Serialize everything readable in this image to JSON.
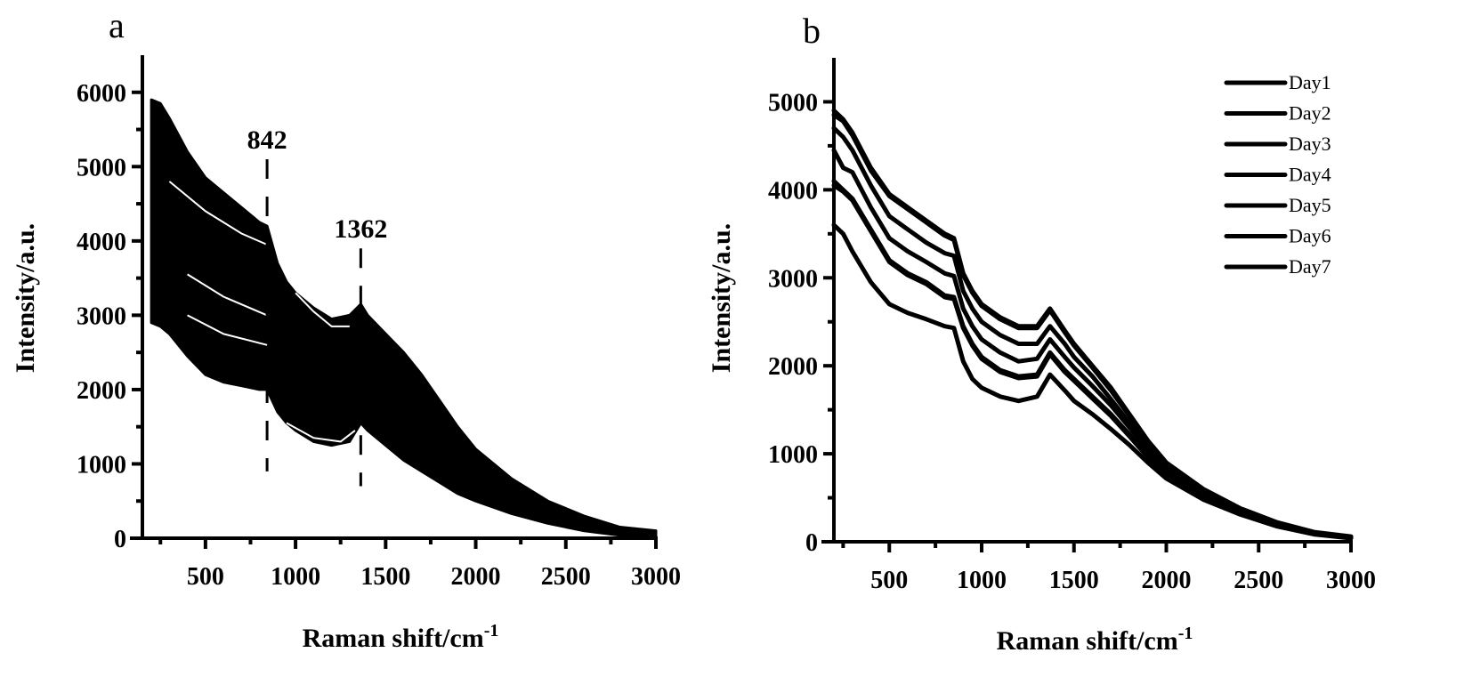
{
  "chart_data": [
    {
      "id": "a",
      "type": "line",
      "panel_label": "a",
      "title": "",
      "xlabel": "Raman shift/cm",
      "xlabel_sup": "-1",
      "ylabel": "Intensity/a.u.",
      "xlim": [
        150,
        3000
      ],
      "ylim": [
        0,
        6500
      ],
      "xticks": [
        500,
        1000,
        1500,
        2000,
        2500,
        3000
      ],
      "xtick_labels": [
        "500",
        "1000",
        "1500",
        "2000",
        "2500",
        "3000"
      ],
      "yticks": [
        0,
        1000,
        2000,
        3000,
        4000,
        5000,
        6000
      ],
      "ytick_labels": [
        "0",
        "1000",
        "2000",
        "3000",
        "4000",
        "5000",
        "6000"
      ],
      "grid": false,
      "legend": null,
      "description": "Dense overlay of many Raman spectra forming a filled black band",
      "band": {
        "x": [
          200,
          250,
          300,
          400,
          500,
          600,
          700,
          800,
          842,
          900,
          950,
          1000,
          1100,
          1200,
          1300,
          1362,
          1400,
          1500,
          1600,
          1700,
          1800,
          1900,
          2000,
          2200,
          2400,
          2600,
          2800,
          3000
        ],
        "upper": [
          5900,
          5850,
          5650,
          5200,
          4850,
          4650,
          4450,
          4250,
          4200,
          3700,
          3450,
          3300,
          3100,
          2950,
          3000,
          3150,
          3000,
          2750,
          2500,
          2200,
          1850,
          1500,
          1200,
          800,
          500,
          300,
          150,
          100
        ],
        "lower": [
          2900,
          2850,
          2750,
          2450,
          2200,
          2100,
          2050,
          2000,
          2000,
          1700,
          1550,
          1450,
          1300,
          1250,
          1300,
          1550,
          1450,
          1250,
          1050,
          900,
          750,
          600,
          500,
          330,
          200,
          100,
          40,
          20
        ]
      },
      "inner_traces": [
        {
          "x": [
            300,
            500,
            700,
            842
          ],
          "y": [
            4800,
            4400,
            4100,
            3950
          ]
        },
        {
          "x": [
            400,
            600,
            842
          ],
          "y": [
            3550,
            3250,
            3000
          ]
        },
        {
          "x": [
            400,
            600,
            842
          ],
          "y": [
            3000,
            2750,
            2600
          ]
        },
        {
          "x": [
            1000,
            1100,
            1200,
            1300
          ],
          "y": [
            3300,
            3050,
            2850,
            2850
          ]
        },
        {
          "x": [
            950,
            1100,
            1250,
            1330
          ],
          "y": [
            1550,
            1350,
            1300,
            1450
          ]
        }
      ],
      "annotations": [
        {
          "text": "842",
          "x": 842,
          "line_from": 900,
          "line_to": 5100,
          "style": "dashed"
        },
        {
          "text": "1362",
          "x": 1362,
          "line_from": 700,
          "line_to": 3900,
          "style": "dashed"
        }
      ]
    },
    {
      "id": "b",
      "type": "line",
      "panel_label": "b",
      "title": "",
      "xlabel": "Raman shift/cm",
      "xlabel_sup": "-1",
      "ylabel": "Intensity/a.u.",
      "xlim": [
        200,
        3000
      ],
      "ylim": [
        0,
        5500
      ],
      "xticks": [
        500,
        1000,
        1500,
        2000,
        2500,
        3000
      ],
      "xtick_labels": [
        "500",
        "1000",
        "1500",
        "2000",
        "2500",
        "3000"
      ],
      "yticks": [
        0,
        1000,
        2000,
        3000,
        4000,
        5000
      ],
      "ytick_labels": [
        "0",
        "1000",
        "2000",
        "3000",
        "4000",
        "5000"
      ],
      "grid": false,
      "legend": {
        "position": "top-right",
        "entries": [
          "Day1",
          "Day2",
          "Day3",
          "Day4",
          "Day5",
          "Day6",
          "Day7"
        ]
      },
      "x": [
        200,
        250,
        300,
        400,
        500,
        600,
        700,
        800,
        850,
        900,
        950,
        1000,
        1100,
        1200,
        1300,
        1370,
        1450,
        1500,
        1600,
        1700,
        1800,
        1900,
        2000,
        2200,
        2400,
        2600,
        2800,
        3000
      ],
      "series": [
        {
          "name": "Day1",
          "values": [
            4900,
            4800,
            4650,
            4250,
            3950,
            3800,
            3650,
            3500,
            3450,
            3050,
            2850,
            2700,
            2550,
            2450,
            2450,
            2650,
            2400,
            2250,
            2000,
            1750,
            1450,
            1150,
            900,
            600,
            380,
            220,
            110,
            60
          ]
        },
        {
          "name": "Day2",
          "values": [
            4850,
            4780,
            4620,
            4220,
            3930,
            3780,
            3630,
            3480,
            3430,
            3030,
            2830,
            2680,
            2530,
            2430,
            2430,
            2630,
            2380,
            2230,
            1980,
            1720,
            1430,
            1130,
            880,
            590,
            370,
            210,
            105,
            55
          ]
        },
        {
          "name": "Day3",
          "values": [
            4700,
            4600,
            4450,
            4050,
            3700,
            3550,
            3400,
            3280,
            3250,
            2850,
            2650,
            2500,
            2350,
            2250,
            2250,
            2450,
            2250,
            2100,
            1880,
            1620,
            1350,
            1080,
            850,
            570,
            360,
            200,
            100,
            50
          ]
        },
        {
          "name": "Day4",
          "values": [
            4450,
            4250,
            4200,
            3800,
            3450,
            3300,
            3180,
            3050,
            3020,
            2650,
            2450,
            2300,
            2150,
            2050,
            2080,
            2300,
            2100,
            1980,
            1770,
            1550,
            1300,
            1040,
            820,
            550,
            350,
            195,
            95,
            50
          ]
        },
        {
          "name": "Day5",
          "values": [
            4100,
            4000,
            3900,
            3550,
            3200,
            3050,
            2950,
            2800,
            2780,
            2450,
            2250,
            2100,
            1950,
            1880,
            1900,
            2150,
            1950,
            1850,
            1650,
            1450,
            1220,
            980,
            780,
            520,
            330,
            185,
            90,
            45
          ]
        },
        {
          "name": "Day6",
          "values": [
            4050,
            3980,
            3880,
            3530,
            3180,
            3030,
            2930,
            2780,
            2760,
            2430,
            2230,
            2080,
            1930,
            1860,
            1880,
            2130,
            1930,
            1830,
            1630,
            1430,
            1200,
            960,
            760,
            510,
            325,
            180,
            88,
            44
          ]
        },
        {
          "name": "Day7",
          "values": [
            3600,
            3500,
            3300,
            2950,
            2700,
            2600,
            2530,
            2450,
            2430,
            2050,
            1850,
            1750,
            1650,
            1600,
            1650,
            1900,
            1720,
            1600,
            1450,
            1280,
            1100,
            900,
            720,
            480,
            310,
            175,
            85,
            40
          ]
        }
      ]
    }
  ]
}
